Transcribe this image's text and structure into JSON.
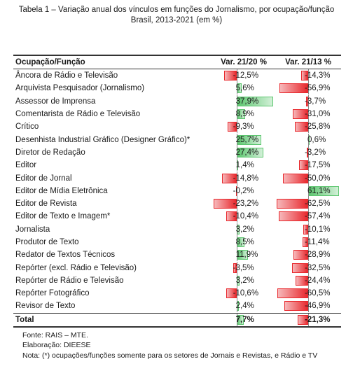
{
  "title_line1": "Tabela 1 – Variação anual dos vínculos em funções do Jornalismo, por ocupação/função",
  "title_line2": "Brasil, 2013-2021 (em %)",
  "headers": {
    "occupation": "Ocupação/Função",
    "col1": "Var. 21/20 %",
    "col2": "Var. 21/13 %"
  },
  "rows": [
    {
      "label": "Âncora de Rádio e Televisão",
      "v1": -12.5,
      "v1_text": "-12,5%",
      "v2": -14.3,
      "v2_text": "-14,3%"
    },
    {
      "label": "Arquivista Pesquisador (Jornalismo)",
      "v1": 5.6,
      "v1_text": "5,6%",
      "v2": -56.9,
      "v2_text": "-56,9%"
    },
    {
      "label": "Assessor de Imprensa",
      "v1": 37.9,
      "v1_text": "37,9%",
      "v2": -3.7,
      "v2_text": "-3,7%"
    },
    {
      "label": "Comentarista de Rádio e Televisão",
      "v1": 8.9,
      "v1_text": "8,9%",
      "v2": -31.0,
      "v2_text": "-31,0%"
    },
    {
      "label": "Crítico",
      "v1": -9.3,
      "v1_text": "-9,3%",
      "v2": -25.8,
      "v2_text": "-25,8%"
    },
    {
      "label": "Desenhista Industrial Gráfico (Designer Gráfico)*",
      "v1": 25.7,
      "v1_text": "25,7%",
      "v2": 0.6,
      "v2_text": "0,6%"
    },
    {
      "label": "Diretor de Redação",
      "v1": 27.4,
      "v1_text": "27,4%",
      "v2": -3.2,
      "v2_text": "-3,2%"
    },
    {
      "label": "Editor",
      "v1": 1.4,
      "v1_text": "1,4%",
      "v2": -17.5,
      "v2_text": "-17,5%"
    },
    {
      "label": "Editor de Jornal",
      "v1": -14.8,
      "v1_text": "-14,8%",
      "v2": -50.0,
      "v2_text": "-50,0%"
    },
    {
      "label": "Editor de Mídia Eletrônica",
      "v1": -0.2,
      "v1_text": "-0,2%",
      "v2": 61.1,
      "v2_text": "61,1%"
    },
    {
      "label": "Editor de Revista",
      "v1": -23.2,
      "v1_text": "-23,2%",
      "v2": -62.5,
      "v2_text": "-62,5%"
    },
    {
      "label": "Editor de Texto e Imagem*",
      "v1": -10.4,
      "v1_text": "-10,4%",
      "v2": -57.4,
      "v2_text": "-57,4%"
    },
    {
      "label": "Jornalista",
      "v1": 3.2,
      "v1_text": "3,2%",
      "v2": -10.1,
      "v2_text": "-10,1%"
    },
    {
      "label": "Produtor de Texto",
      "v1": 8.5,
      "v1_text": "8,5%",
      "v2": -11.4,
      "v2_text": "-11,4%"
    },
    {
      "label": "Redator de Textos Técnicos",
      "v1": 11.9,
      "v1_text": "11,9%",
      "v2": -28.9,
      "v2_text": "-28,9%"
    },
    {
      "label": "Repórter (excl. Rádio e Televisão)",
      "v1": -3.5,
      "v1_text": "-3,5%",
      "v2": -32.5,
      "v2_text": "-32,5%"
    },
    {
      "label": "Repórter de Rádio e Televisão",
      "v1": 3.2,
      "v1_text": "3,2%",
      "v2": -24.4,
      "v2_text": "-24,4%"
    },
    {
      "label": "Repórter Fotográfico",
      "v1": -10.6,
      "v1_text": "-10,6%",
      "v2": -60.5,
      "v2_text": "-60,5%"
    },
    {
      "label": "Revisor de Texto",
      "v1": 2.4,
      "v1_text": "2,4%",
      "v2": -46.9,
      "v2_text": "-46,9%"
    }
  ],
  "total": {
    "label": "Total",
    "v1": 7.7,
    "v1_text": "7,7%",
    "v2": -21.3,
    "v2_text": "-21,3%"
  },
  "colors": {
    "negative": "#e8282d",
    "positive": "#5cc66f"
  },
  "footnotes": [
    "Fonte: RAIS – MTE.",
    "Elaboração: DIEESE",
    "Nota: (*) ocupações/funções somente para os setores de Jornais e Revistas, e Rádio e TV"
  ]
}
